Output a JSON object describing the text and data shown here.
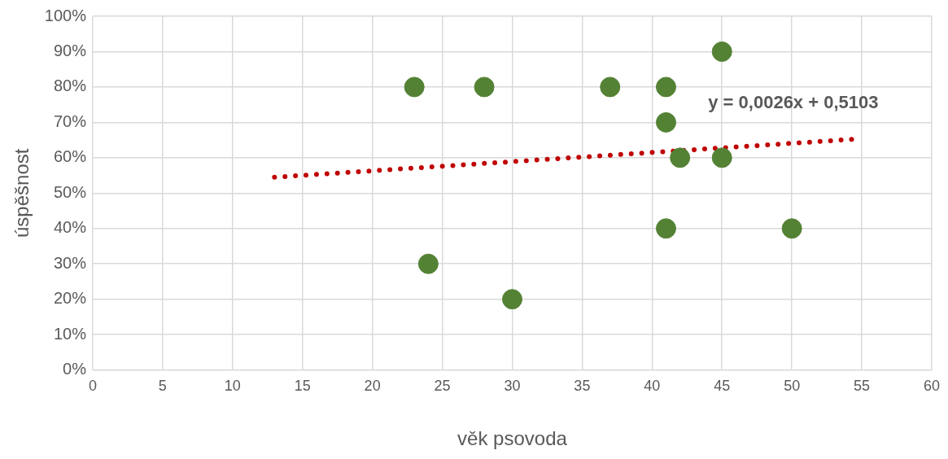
{
  "chart_data": {
    "type": "scatter",
    "xlabel": "věk psovoda",
    "ylabel": "úspěšnost",
    "x": [
      23,
      28,
      37,
      41,
      45,
      41,
      42,
      45,
      41,
      50,
      24,
      30
    ],
    "series": [
      {
        "color": "#548235",
        "values": [
          80,
          80,
          80,
          80,
          90,
          70,
          60,
          60,
          40,
          40,
          30,
          20
        ]
      },
      {
        "type": "line",
        "color": "#c00000",
        "line_style": "dotted",
        "marker": "none",
        "x": [
          13,
          54.3
        ],
        "values": [
          54.5,
          65.2
        ]
      }
    ],
    "xlim": [
      0,
      60
    ],
    "xticks": [
      0,
      5,
      10,
      15,
      20,
      25,
      30,
      35,
      40,
      45,
      50,
      55,
      60
    ],
    "ylim": [
      0,
      100
    ],
    "yticks": [
      {
        "value": 0,
        "label": "0%"
      },
      {
        "value": 10,
        "label": "10%"
      },
      {
        "value": 20,
        "label": "20%"
      },
      {
        "value": 30,
        "label": "30%"
      },
      {
        "value": 40,
        "label": "40%"
      },
      {
        "value": 50,
        "label": "50%"
      },
      {
        "value": 60,
        "label": "60%"
      },
      {
        "value": 70,
        "label": "70%"
      },
      {
        "value": 80,
        "label": "80%"
      },
      {
        "value": 90,
        "label": "90%"
      },
      {
        "value": 100,
        "label": "100%"
      }
    ],
    "grid": true,
    "marker": "circle",
    "annotations": [
      "y = 0,0026x + 0,5103"
    ]
  }
}
